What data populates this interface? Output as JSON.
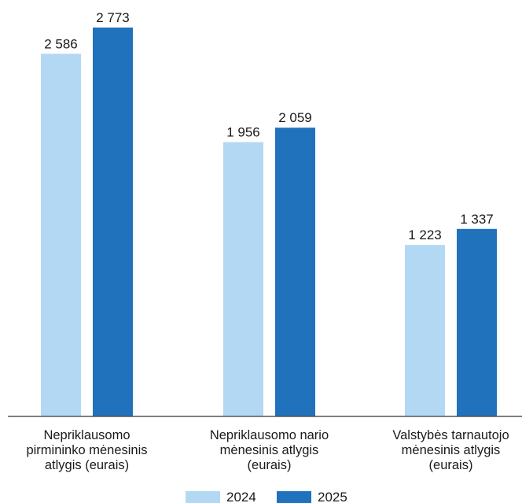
{
  "chart_data": {
    "type": "bar",
    "categories": [
      [
        "Nepriklausomo",
        "pirmininko mėnesinis",
        "atlygis (eurais)"
      ],
      [
        "Nepriklausomo nario",
        "mėnesinis atlygis",
        "(eurais)"
      ],
      [
        "Valstybės tarnautojo",
        "mėnesinis atlygis",
        "(eurais)"
      ]
    ],
    "series": [
      {
        "name": "2024",
        "color": "#b3d8f3",
        "values": [
          2586,
          1956,
          1223
        ],
        "labels": [
          "2 586",
          "1 956",
          "1 223"
        ]
      },
      {
        "name": "2025",
        "color": "#1f72bb",
        "values": [
          2773,
          2059,
          1337
        ],
        "labels": [
          "2 773",
          "2 059",
          "1 337"
        ]
      }
    ],
    "ylim": [
      0,
      2900
    ],
    "grid": false,
    "legend_position": "bottom"
  }
}
